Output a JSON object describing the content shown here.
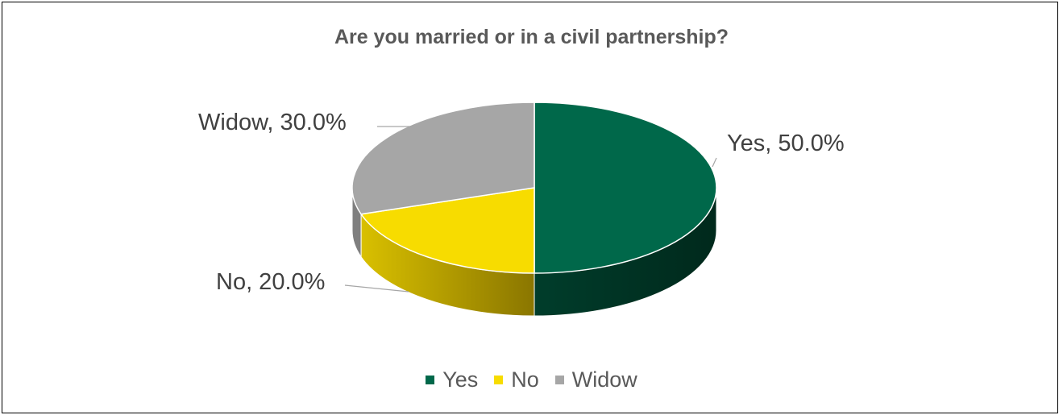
{
  "chart_data": {
    "type": "pie",
    "title": "Are you married or in a civil partnership?",
    "categories": [
      "Yes",
      "No",
      "Widow"
    ],
    "values": [
      50.0,
      20.0,
      30.0
    ],
    "unit": "%",
    "data_labels": [
      "Yes, 50.0%",
      "No, 20.0%",
      "Widow, 30.0%"
    ],
    "colors": [
      "#00684A",
      "#F7DC00",
      "#A6A6A6"
    ],
    "legend_position": "bottom",
    "style": "3d"
  }
}
